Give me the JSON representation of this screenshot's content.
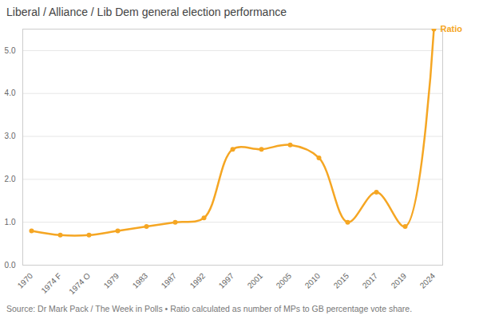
{
  "chart_data": {
    "type": "line",
    "title": "Liberal / Alliance / Lib Dem general election performance",
    "caption": "Source: Dr Mark Pack / The Week in Polls • Ratio calculated as number of MPs to GB percentage vote share.",
    "categories": [
      "1970",
      "1974 F",
      "1974 O",
      "1979",
      "1983",
      "1987",
      "1992",
      "1997",
      "2001",
      "2005",
      "2010",
      "2015",
      "2017",
      "2019",
      "2024"
    ],
    "series": [
      {
        "name": "Ratio",
        "color": "#f5a623",
        "marker": "circle",
        "values": [
          0.8,
          0.7,
          0.7,
          0.8,
          0.9,
          1.0,
          1.1,
          2.7,
          2.7,
          2.8,
          2.5,
          1.0,
          1.7,
          0.9,
          5.5
        ]
      }
    ],
    "ylim": [
      0,
      5.5
    ],
    "yticks": [
      0,
      1,
      2,
      3,
      4,
      5
    ],
    "grid": true
  }
}
